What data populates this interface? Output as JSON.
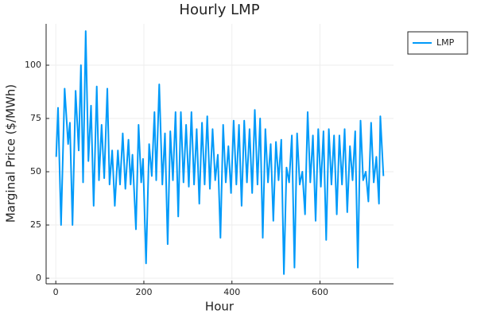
{
  "chart_data": {
    "type": "line",
    "title": "Hourly LMP",
    "xlabel": "Hour",
    "ylabel": "Marginal Price ($/MWh)",
    "xlim": [
      -22,
      767
    ],
    "ylim": [
      -2.6,
      119.4
    ],
    "xticks": [
      0,
      200,
      400,
      600
    ],
    "yticks": [
      0,
      25,
      50,
      75,
      100
    ],
    "grid": true,
    "legend": "outside-top-right",
    "x": [
      1,
      5,
      12,
      20,
      28,
      32,
      38,
      45,
      52,
      57,
      62,
      68,
      74,
      80,
      86,
      93,
      98,
      104,
      110,
      117,
      122,
      128,
      134,
      141,
      146,
      152,
      158,
      165,
      170,
      174,
      182,
      188,
      194,
      198,
      205,
      212,
      218,
      224,
      228,
      235,
      242,
      248,
      254,
      260,
      266,
      272,
      278,
      284,
      290,
      296,
      302,
      308,
      314,
      320,
      326,
      332,
      338,
      344,
      350,
      356,
      362,
      368,
      374,
      380,
      386,
      392,
      398,
      404,
      410,
      416,
      422,
      428,
      434,
      440,
      446,
      452,
      458,
      464,
      470,
      476,
      482,
      488,
      494,
      500,
      506,
      512,
      518,
      524,
      530,
      536,
      542,
      548,
      554,
      560,
      566,
      572,
      578,
      584,
      590,
      596,
      602,
      608,
      614,
      620,
      626,
      632,
      638,
      644,
      650,
      656,
      662,
      668,
      674,
      680,
      686,
      692,
      698,
      704,
      710,
      716,
      722,
      728,
      734,
      737,
      744
    ],
    "series": [
      {
        "name": "LMP",
        "color": "#009af9",
        "values": [
          57,
          80,
          25,
          89,
          63,
          73,
          25,
          88,
          60,
          100,
          45,
          116,
          55,
          81,
          34,
          90,
          46,
          72,
          47,
          89,
          44,
          60,
          34,
          60,
          44,
          68,
          42,
          65,
          44,
          58,
          23,
          72,
          45,
          56,
          7,
          63,
          48,
          78,
          46,
          91,
          44,
          68,
          16,
          69,
          46,
          78,
          29,
          78,
          45,
          72,
          43,
          78,
          44,
          70,
          35,
          73,
          44,
          76,
          42,
          70,
          46,
          58,
          19,
          72,
          45,
          62,
          40,
          74,
          44,
          72,
          34,
          74,
          45,
          70,
          40,
          79,
          44,
          75,
          19,
          70,
          45,
          63,
          27,
          64,
          46,
          65,
          2,
          52,
          45,
          67,
          5,
          68,
          44,
          50,
          30,
          78,
          45,
          67,
          27,
          70,
          43,
          69,
          18,
          70,
          44,
          67,
          30,
          67,
          44,
          70,
          31,
          62,
          46,
          69,
          5,
          74,
          46,
          50,
          36,
          73,
          45,
          57,
          35,
          76,
          48
        ]
      }
    ]
  }
}
